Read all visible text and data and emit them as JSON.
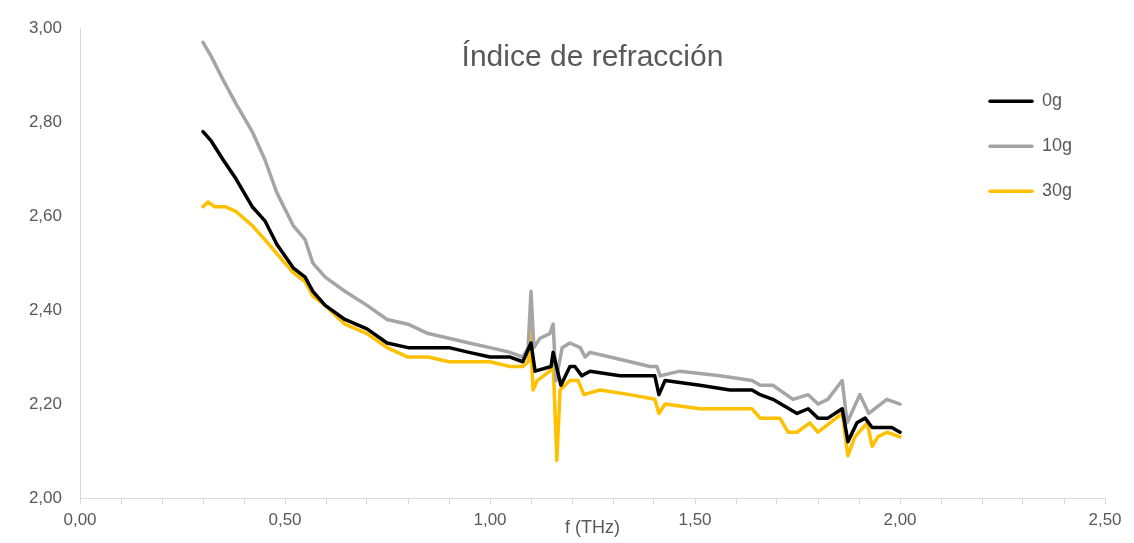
{
  "chart_data": {
    "type": "line",
    "title": "Índice de refracción",
    "xlabel": "f (THz)",
    "legend": "top right",
    "grid": false,
    "marker": "none",
    "line_style": "solid",
    "xlim": [
      0,
      2.5
    ],
    "xticks": [
      {
        "value": 0,
        "label": "0,00"
      },
      {
        "value": 0.1,
        "label": null
      },
      {
        "value": 0.2,
        "label": null
      },
      {
        "value": 0.3,
        "label": null
      },
      {
        "value": 0.4,
        "label": null
      },
      {
        "value": 0.5,
        "label": "0,50"
      },
      {
        "value": 0.6,
        "label": null
      },
      {
        "value": 0.7,
        "label": null
      },
      {
        "value": 0.8,
        "label": null
      },
      {
        "value": 0.9,
        "label": null
      },
      {
        "value": 1,
        "label": "1,00"
      },
      {
        "value": 1.1,
        "label": null
      },
      {
        "value": 1.2,
        "label": null
      },
      {
        "value": 1.3,
        "label": null
      },
      {
        "value": 1.4,
        "label": null
      },
      {
        "value": 1.5,
        "label": "1,50"
      },
      {
        "value": 1.6,
        "label": null
      },
      {
        "value": 1.7,
        "label": null
      },
      {
        "value": 1.8,
        "label": null
      },
      {
        "value": 1.9,
        "label": null
      },
      {
        "value": 2,
        "label": "2,00"
      },
      {
        "value": 2.1,
        "label": null
      },
      {
        "value": 2.2,
        "label": null
      },
      {
        "value": 2.3,
        "label": null
      },
      {
        "value": 2.4,
        "label": null
      },
      {
        "value": 2.5,
        "label": "2,50"
      }
    ],
    "ylim": [
      2,
      3
    ],
    "yticks": [
      {
        "value": 2,
        "label": "2,00"
      },
      {
        "value": 2.2,
        "label": "2,20"
      },
      {
        "value": 2.4,
        "label": "2,40"
      },
      {
        "value": 2.6,
        "label": "2,60"
      },
      {
        "value": 2.8,
        "label": "2,80"
      },
      {
        "value": 3,
        "label": "3,00"
      }
    ],
    "series": [
      {
        "name": "0g",
        "color": "#000000",
        "x": [
          0.3,
          0.32,
          0.349,
          0.38,
          0.42,
          0.451,
          0.48,
          0.52,
          0.549,
          0.568,
          0.598,
          0.646,
          0.7,
          0.749,
          0.8,
          0.849,
          0.9,
          0.949,
          1.0,
          1.049,
          1.08,
          1.1,
          1.11,
          1.149,
          1.154,
          1.173,
          1.195,
          1.207,
          1.224,
          1.244,
          1.317,
          1.402,
          1.412,
          1.427,
          1.512,
          1.585,
          1.639,
          1.659,
          1.69,
          1.749,
          1.776,
          1.8,
          1.824,
          1.859,
          1.873,
          1.895,
          1.915,
          1.932,
          1.951,
          1.98,
          2.0
        ],
        "values": [
          2.78,
          2.76,
          2.72,
          2.68,
          2.62,
          2.59,
          2.54,
          2.49,
          2.47,
          2.44,
          2.41,
          2.38,
          2.36,
          2.33,
          2.32,
          2.32,
          2.32,
          2.31,
          2.3,
          2.3,
          2.29,
          2.33,
          2.27,
          2.28,
          2.31,
          2.24,
          2.28,
          2.28,
          2.26,
          2.27,
          2.26,
          2.26,
          2.22,
          2.25,
          2.24,
          2.23,
          2.23,
          2.22,
          2.21,
          2.18,
          2.19,
          2.17,
          2.17,
          2.19,
          2.12,
          2.16,
          2.17,
          2.15,
          2.15,
          2.15,
          2.14
        ]
      },
      {
        "name": "10g",
        "color": "#a5a5a5",
        "x": [
          0.3,
          0.32,
          0.349,
          0.38,
          0.42,
          0.451,
          0.48,
          0.52,
          0.549,
          0.568,
          0.598,
          0.646,
          0.7,
          0.749,
          0.8,
          0.849,
          0.9,
          0.949,
          1.0,
          1.049,
          1.08,
          1.093,
          1.1,
          1.107,
          1.122,
          1.146,
          1.154,
          1.161,
          1.176,
          1.195,
          1.22,
          1.232,
          1.244,
          1.293,
          1.39,
          1.407,
          1.415,
          1.463,
          1.561,
          1.639,
          1.659,
          1.69,
          1.739,
          1.776,
          1.8,
          1.824,
          1.859,
          1.871,
          1.902,
          1.924,
          1.968,
          2.0
        ],
        "values": [
          2.97,
          2.94,
          2.89,
          2.84,
          2.78,
          2.72,
          2.65,
          2.58,
          2.55,
          2.5,
          2.47,
          2.44,
          2.41,
          2.38,
          2.37,
          2.35,
          2.34,
          2.33,
          2.32,
          2.31,
          2.3,
          2.32,
          2.44,
          2.32,
          2.34,
          2.35,
          2.37,
          2.25,
          2.32,
          2.33,
          2.32,
          2.3,
          2.31,
          2.3,
          2.28,
          2.28,
          2.26,
          2.27,
          2.26,
          2.25,
          2.24,
          2.24,
          2.21,
          2.22,
          2.2,
          2.21,
          2.25,
          2.16,
          2.22,
          2.18,
          2.21,
          2.2
        ]
      },
      {
        "name": "30g",
        "color": "#ffc000",
        "x": [
          0.3,
          0.312,
          0.329,
          0.354,
          0.38,
          0.42,
          0.451,
          0.48,
          0.52,
          0.549,
          0.568,
          0.598,
          0.646,
          0.7,
          0.749,
          0.8,
          0.849,
          0.9,
          1.0,
          1.049,
          1.08,
          1.093,
          1.098,
          1.105,
          1.115,
          1.146,
          1.154,
          1.163,
          1.171,
          1.195,
          1.215,
          1.229,
          1.268,
          1.341,
          1.402,
          1.412,
          1.427,
          1.512,
          1.639,
          1.659,
          1.695,
          1.707,
          1.727,
          1.749,
          1.78,
          1.8,
          1.859,
          1.873,
          1.89,
          1.92,
          1.932,
          1.946,
          1.968,
          2.0
        ],
        "values": [
          2.62,
          2.63,
          2.62,
          2.62,
          2.61,
          2.58,
          2.55,
          2.52,
          2.48,
          2.46,
          2.43,
          2.41,
          2.37,
          2.35,
          2.32,
          2.3,
          2.3,
          2.29,
          2.29,
          2.28,
          2.28,
          2.29,
          2.36,
          2.23,
          2.25,
          2.27,
          2.29,
          2.08,
          2.23,
          2.25,
          2.25,
          2.22,
          2.23,
          2.22,
          2.21,
          2.18,
          2.2,
          2.19,
          2.19,
          2.17,
          2.17,
          2.17,
          2.14,
          2.14,
          2.16,
          2.14,
          2.18,
          2.09,
          2.13,
          2.16,
          2.11,
          2.13,
          2.14,
          2.13
        ]
      }
    ]
  }
}
